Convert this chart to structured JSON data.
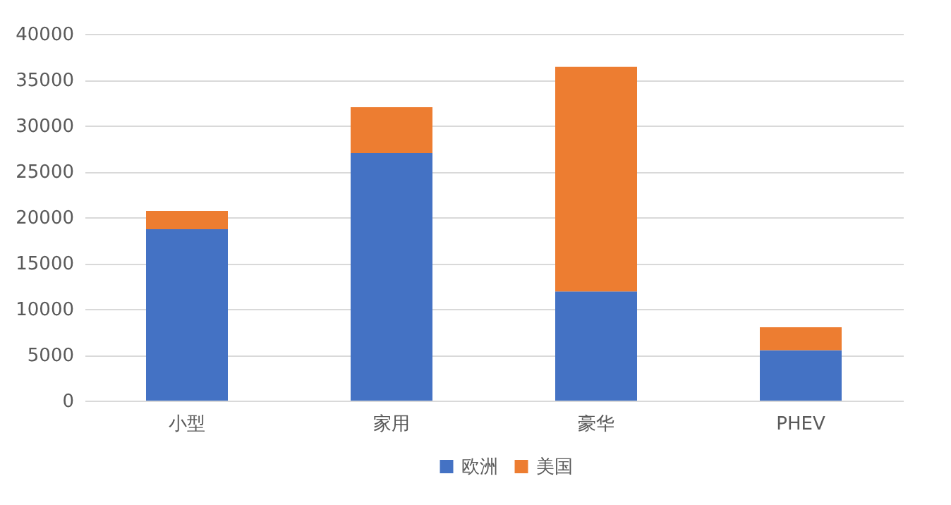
{
  "chart_data": {
    "type": "bar",
    "stacked": true,
    "categories": [
      "小型",
      "家用",
      "豪华",
      "PHEV"
    ],
    "series": [
      {
        "name": "欧洲",
        "color": "#4472c4",
        "values": [
          18700,
          27000,
          11900,
          5500
        ]
      },
      {
        "name": "美国",
        "color": "#ed7d31",
        "values": [
          2000,
          5000,
          24500,
          2500
        ]
      }
    ],
    "ylim": [
      0,
      40000
    ],
    "yticks": [
      0,
      5000,
      10000,
      15000,
      20000,
      25000,
      30000,
      35000,
      40000
    ],
    "grid": "y",
    "legend": "bottom"
  }
}
